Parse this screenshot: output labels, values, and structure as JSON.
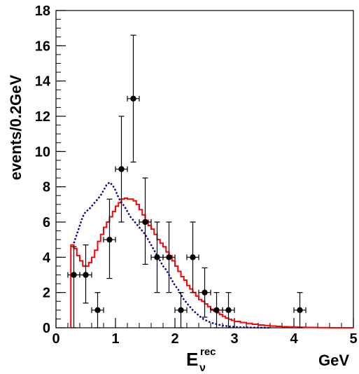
{
  "chart_data": {
    "type": "line",
    "title": "",
    "xlabel": {
      "main": "E",
      "sub": "ν",
      "sup": "rec"
    },
    "xunit": "GeV",
    "ylabel": "events/0.2GeV",
    "xlim": [
      0,
      5
    ],
    "ylim": [
      0,
      18
    ],
    "x_ticks": [
      "0",
      "1",
      "2",
      "3",
      "4",
      "5"
    ],
    "y_ticks": [
      "0",
      "2",
      "4",
      "6",
      "8",
      "10",
      "12",
      "14",
      "16",
      "18"
    ],
    "grid": false,
    "legend": "none",
    "data_points": [
      {
        "x": 0.3,
        "y": 3,
        "yerr_low": 3,
        "yerr_high": 1.6
      },
      {
        "x": 0.5,
        "y": 3,
        "yerr_low": 1.6,
        "yerr_high": 1.7
      },
      {
        "x": 0.7,
        "y": 1,
        "yerr_low": 1,
        "yerr_high": 1
      },
      {
        "x": 0.9,
        "y": 5,
        "yerr_low": 2.2,
        "yerr_high": 2.3
      },
      {
        "x": 1.1,
        "y": 9,
        "yerr_low": 3,
        "yerr_high": 3
      },
      {
        "x": 1.3,
        "y": 13,
        "yerr_low": 3.6,
        "yerr_high": 3.6
      },
      {
        "x": 1.5,
        "y": 6,
        "yerr_low": 2.4,
        "yerr_high": 2.5
      },
      {
        "x": 1.7,
        "y": 4,
        "yerr_low": 2,
        "yerr_high": 2
      },
      {
        "x": 1.9,
        "y": 4,
        "yerr_low": 2,
        "yerr_high": 2
      },
      {
        "x": 2.1,
        "y": 1,
        "yerr_low": 1,
        "yerr_high": 1
      },
      {
        "x": 2.3,
        "y": 4,
        "yerr_low": 2,
        "yerr_high": 2
      },
      {
        "x": 2.5,
        "y": 2,
        "yerr_low": 1.4,
        "yerr_high": 1.4
      },
      {
        "x": 2.7,
        "y": 1,
        "yerr_low": 1,
        "yerr_high": 1
      },
      {
        "x": 2.9,
        "y": 1,
        "yerr_low": 1,
        "yerr_high": 1
      },
      {
        "x": 4.1,
        "y": 1,
        "yerr_low": 1,
        "yerr_high": 1
      }
    ],
    "x_error_halfwidth": 0.1,
    "series": [
      {
        "style": "solid-step",
        "color": "#ff0000",
        "x": [
          0.25,
          0.3,
          0.35,
          0.4,
          0.45,
          0.5,
          0.55,
          0.6,
          0.65,
          0.7,
          0.75,
          0.8,
          0.85,
          0.9,
          0.95,
          1.0,
          1.05,
          1.1,
          1.15,
          1.2,
          1.25,
          1.3,
          1.35,
          1.4,
          1.45,
          1.5,
          1.55,
          1.6,
          1.65,
          1.7,
          1.75,
          1.8,
          1.85,
          1.9,
          1.95,
          2.0,
          2.05,
          2.1,
          2.15,
          2.2,
          2.25,
          2.3,
          2.35,
          2.4,
          2.45,
          2.5,
          2.55,
          2.6,
          2.65,
          2.7,
          2.75,
          2.8,
          2.85,
          2.9,
          2.95,
          3.0,
          3.1,
          3.2,
          3.3,
          3.4,
          3.5,
          3.6,
          3.7,
          3.8,
          3.9,
          4.0,
          4.1,
          4.2,
          4.4,
          4.6,
          4.8,
          5.0
        ],
        "y": [
          4.7,
          4.5,
          4.1,
          3.8,
          3.5,
          3.5,
          3.7,
          4.0,
          4.4,
          4.9,
          5.3,
          5.7,
          6.0,
          6.3,
          6.6,
          6.9,
          7.1,
          7.3,
          7.35,
          7.3,
          7.3,
          7.2,
          7.0,
          6.7,
          6.4,
          6.1,
          5.8,
          5.6,
          5.3,
          5.0,
          4.8,
          4.6,
          4.3,
          4.1,
          3.8,
          3.5,
          3.2,
          2.9,
          2.7,
          2.4,
          2.2,
          2.0,
          1.8,
          1.6,
          1.5,
          1.35,
          1.2,
          1.05,
          0.95,
          0.85,
          0.75,
          0.65,
          0.55,
          0.48,
          0.42,
          0.36,
          0.3,
          0.25,
          0.2,
          0.16,
          0.13,
          0.1,
          0.08,
          0.06,
          0.05,
          0.04,
          0.03,
          0.02,
          0.01,
          0.0,
          0.0,
          0.0
        ]
      },
      {
        "style": "dotted",
        "color": "#00008b",
        "x": [
          0.3,
          0.35,
          0.4,
          0.45,
          0.5,
          0.55,
          0.6,
          0.65,
          0.7,
          0.75,
          0.8,
          0.85,
          0.9,
          0.95,
          1.0,
          1.05,
          1.1,
          1.15,
          1.2,
          1.25,
          1.3,
          1.35,
          1.4,
          1.45,
          1.5,
          1.55,
          1.6,
          1.65,
          1.7,
          1.75,
          1.8,
          1.85,
          1.9,
          1.95,
          2.0,
          2.05,
          2.1,
          2.15,
          2.2,
          2.25,
          2.3,
          2.35,
          2.4,
          2.45,
          2.5,
          2.6,
          2.7,
          2.8,
          2.9,
          3.0,
          3.2,
          3.4,
          3.6
        ],
        "y": [
          4.8,
          5.3,
          5.8,
          6.3,
          6.6,
          6.7,
          6.9,
          7.1,
          7.3,
          7.5,
          7.8,
          8.1,
          8.25,
          8.1,
          7.8,
          7.4,
          7.1,
          6.9,
          6.6,
          6.3,
          6.1,
          5.9,
          5.7,
          5.5,
          5.3,
          5.0,
          4.7,
          4.4,
          4.1,
          3.8,
          3.5,
          3.3,
          3.0,
          2.7,
          2.4,
          2.2,
          1.9,
          1.6,
          1.4,
          1.2,
          1.0,
          0.85,
          0.7,
          0.55,
          0.45,
          0.3,
          0.2,
          0.13,
          0.08,
          0.05,
          0.02,
          0.01,
          0.0
        ]
      }
    ]
  }
}
